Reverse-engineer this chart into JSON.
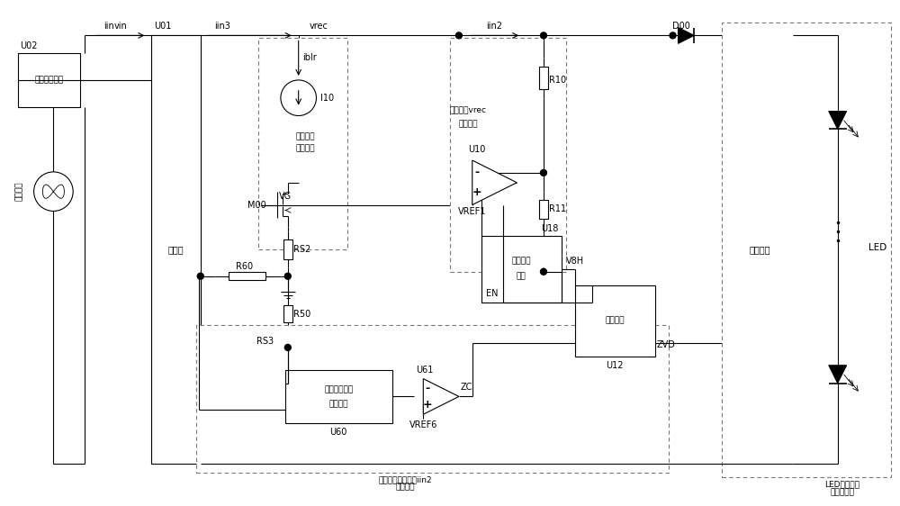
{
  "fig_width": 10.0,
  "fig_height": 5.62,
  "dpi": 100,
  "bg_color": "#ffffff",
  "line_color": "#000000",
  "labels": {
    "iin": "iin",
    "vin": "vin",
    "U01": "U01",
    "U02": "U02",
    "iin3": "iin3",
    "vrec": "vrec",
    "iin2": "iin2",
    "iblr": "iblr",
    "I10": "I10",
    "M00": "M00",
    "VG": "VG",
    "RS2": "RS2",
    "R50": "R50",
    "R60": "R60",
    "RS3": "RS3",
    "U60": "U60",
    "U61": "U61",
    "VREF6": "VREF6",
    "ZC": "ZC",
    "U18": "U18",
    "EN": "EN",
    "V8H": "V8H",
    "U12": "U12",
    "ZVD": "ZVD",
    "R10": "R10",
    "R11": "R11",
    "U10": "U10",
    "VREF1": "VREF1",
    "D00": "D00",
    "bleeder_box": "泄放电流\n调节电路",
    "rectifier": "整流桥",
    "ac_input": "交流输入",
    "dimmer": "可控硅调光器",
    "vrec_detect_1": "输入电压vrec",
    "vrec_detect_2": "检测电路",
    "drive_detect_1": "驱动电路输入电流iin2",
    "drive_detect_2": "检测电路",
    "drive_ctrl_1": "驱动控制",
    "drive_ctrl_2": "电路",
    "logic_1": "逻辑电路",
    "adder_1": "加法电路（取",
    "adder_2": "绝对値）",
    "switch_circuit": "开关电路",
    "led_drive_1": "LED驱动电路",
    "led_drive_2": "（开关型）",
    "LED": "LED"
  }
}
